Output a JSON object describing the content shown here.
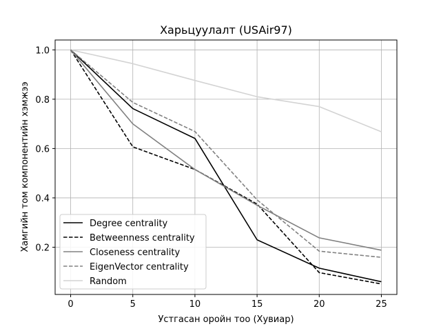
{
  "chart_data": {
    "type": "line",
    "title": "Харьцуулалт (USAir97)",
    "xlabel": "Устгасан оройн тоо (Хувиар)",
    "ylabel": "Хамгийн том компонентийн хэмжээ",
    "x": [
      0,
      5,
      10,
      15,
      20,
      25
    ],
    "xticks": [
      "0",
      "5",
      "10",
      "15",
      "20",
      "25"
    ],
    "yticks": [
      "0.2",
      "0.4",
      "0.6",
      "0.8",
      "1.0"
    ],
    "ytick_values": [
      0.2,
      0.4,
      0.6,
      0.8,
      1.0
    ],
    "xlim": [
      -1.25,
      26.25
    ],
    "ylim": [
      0.0085,
      1.04
    ],
    "grid": true,
    "legend_position": "lower-left",
    "series": [
      {
        "name": "Degree centrality",
        "color": "#000000",
        "dash": "solid",
        "values": [
          1.0,
          0.762,
          0.641,
          0.23,
          0.115,
          0.06
        ]
      },
      {
        "name": "Betweenness centrality",
        "color": "#000000",
        "dash": "dashed",
        "values": [
          1.0,
          0.607,
          0.515,
          0.375,
          0.097,
          0.051
        ]
      },
      {
        "name": "Closeness centrality",
        "color": "#808080",
        "dash": "solid",
        "values": [
          1.0,
          0.7,
          0.515,
          0.37,
          0.238,
          0.188
        ]
      },
      {
        "name": "EigenVector centrality",
        "color": "#808080",
        "dash": "dashed",
        "values": [
          1.0,
          0.787,
          0.669,
          0.392,
          0.184,
          0.159
        ]
      },
      {
        "name": "Random",
        "color": "#d3d3d3",
        "dash": "solid",
        "values": [
          1.0,
          0.944,
          0.876,
          0.81,
          0.77,
          0.668
        ]
      }
    ]
  }
}
